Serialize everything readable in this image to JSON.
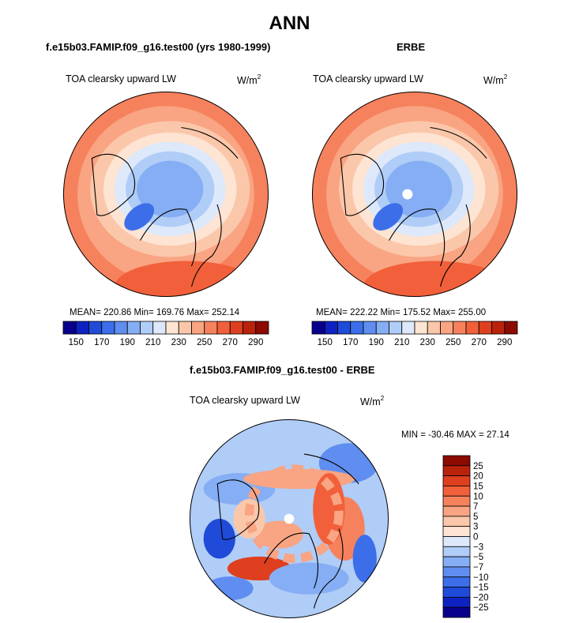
{
  "main_title": "ANN",
  "variable_label": "TOA clearsky upward LW",
  "units_base": "W/m",
  "units_exp": "2",
  "panels": [
    {
      "title": "f.e15b03.FAMIP.f09_g16.test00 (yrs 1980-1999)",
      "stats": "MEAN= 220.86  Min= 169.76  Max= 252.14"
    },
    {
      "title": "ERBE",
      "stats": "MEAN= 222.22  Min= 175.52  Max= 255.00"
    },
    {
      "title": "f.e15b03.FAMIP.f09_g16.test00 - ERBE",
      "stats": "MIN = -30.46 MAX =  27.14"
    }
  ],
  "chart_data": [
    {
      "type": "heatmap",
      "projection": "polar stereographic (north pole)",
      "title": "f.e15b03.FAMIP.f09_g16.test00 (yrs 1980-1999)",
      "variable": "TOA clearsky upward LW",
      "units": "W/m2",
      "mean": 220.86,
      "min": 169.76,
      "max": 252.14,
      "colorbar": {
        "orientation": "horizontal",
        "tick_labels": [
          "150",
          "170",
          "190",
          "210",
          "230",
          "250",
          "270",
          "290"
        ],
        "colors": [
          "#08008c",
          "#0e22c2",
          "#1f4bd8",
          "#3c6ee9",
          "#5f8ef0",
          "#86aef4",
          "#b0cdf7",
          "#dde9fa",
          "#fde4d3",
          "#fbc7aa",
          "#f9a483",
          "#f6825d",
          "#f1603a",
          "#de3f1e",
          "#bb220c",
          "#8c0a00"
        ]
      }
    },
    {
      "type": "heatmap",
      "projection": "polar stereographic (north pole)",
      "title": "ERBE",
      "variable": "TOA clearsky upward LW",
      "units": "W/m2",
      "mean": 222.22,
      "min": 175.52,
      "max": 255.0,
      "colorbar": {
        "orientation": "horizontal",
        "tick_labels": [
          "150",
          "170",
          "190",
          "210",
          "230",
          "250",
          "270",
          "290"
        ],
        "colors": [
          "#08008c",
          "#0e22c2",
          "#1f4bd8",
          "#3c6ee9",
          "#5f8ef0",
          "#86aef4",
          "#b0cdf7",
          "#dde9fa",
          "#fde4d3",
          "#fbc7aa",
          "#f9a483",
          "#f6825d",
          "#f1603a",
          "#de3f1e",
          "#bb220c",
          "#8c0a00"
        ]
      }
    },
    {
      "type": "heatmap",
      "projection": "polar stereographic (north pole)",
      "title": "f.e15b03.FAMIP.f09_g16.test00 - ERBE",
      "variable": "TOA clearsky upward LW",
      "units": "W/m2",
      "min": -30.46,
      "max": 27.14,
      "colorbar": {
        "orientation": "vertical",
        "tick_labels": [
          "25",
          "20",
          "15",
          "10",
          "7",
          "5",
          "3",
          "0",
          "−3",
          "−5",
          "−7",
          "−10",
          "−15",
          "−20",
          "−25"
        ],
        "colors": [
          "#8c0a00",
          "#bb220c",
          "#de3f1e",
          "#f1603a",
          "#f6825d",
          "#f9a483",
          "#fbc7aa",
          "#fde4d3",
          "#dde9fa",
          "#b0cdf7",
          "#86aef4",
          "#5f8ef0",
          "#3c6ee9",
          "#1f4bd8",
          "#0e22c2",
          "#08008c"
        ]
      }
    }
  ]
}
